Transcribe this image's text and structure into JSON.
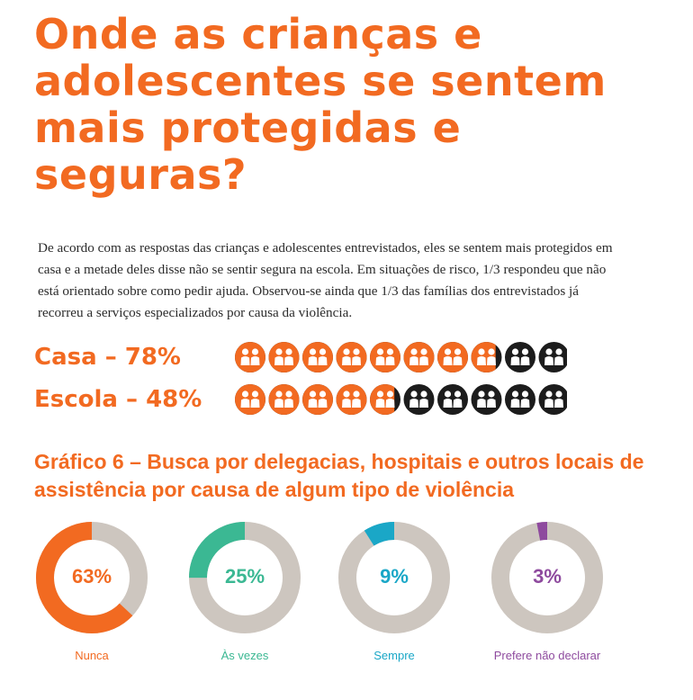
{
  "page": {
    "title": "Onde as crianças e adolescentes se sentem mais protegidas e seguras?",
    "intro": "De acordo com as respostas das crianças e adolescentes entrevistados, eles se sentem mais protegidos em casa e a metade deles disse não se sentir segura na escola. Em situações de risco, 1/3 respondeu que não está orientado sobre como pedir ajuda. Observou-se ainda que 1/3 das famílias dos entrevistados já recorreu a serviços especializados por causa da violência."
  },
  "stats": [
    {
      "label": "Casa – 78%",
      "value": 78,
      "total_icons": 10
    },
    {
      "label": "Escola – 48%",
      "value": 48,
      "total_icons": 10
    }
  ],
  "colors": {
    "orange": "#f26a21",
    "dark": "#1c1c1c",
    "gray": "#cdc6bf",
    "green": "#3bb893",
    "blue": "#1aa7c7",
    "purple": "#8e4a9e"
  },
  "chart_data": {
    "type": "pie",
    "title": "Gráfico 6 – Busca por delegacias, hospitais e outros locais de assistência por causa de algum tipo de violência",
    "donuts": [
      {
        "label": "Nunca",
        "value": 63,
        "display": "63%",
        "color": "#f26a21"
      },
      {
        "label": "Às vezes",
        "value": 25,
        "display": "25%",
        "color": "#3bb893"
      },
      {
        "label": "Sempre",
        "value": 9,
        "display": "9%",
        "color": "#1aa7c7"
      },
      {
        "label": "Prefere não declarar",
        "value": 3,
        "display": "3%",
        "color": "#8e4a9e"
      }
    ]
  }
}
